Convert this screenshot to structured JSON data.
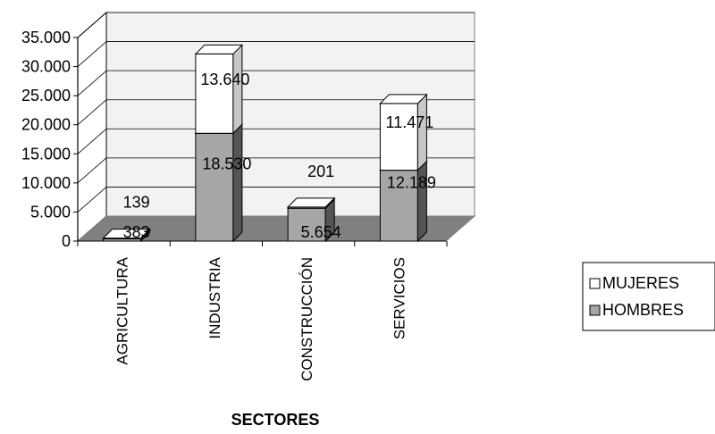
{
  "chart_data": {
    "type": "bar",
    "stacked": true,
    "three_d": true,
    "xlabel": "SECTORES",
    "ylabel": "",
    "ylim": [
      0,
      35000
    ],
    "y_ticks": [
      "0",
      "5.000",
      "10.000",
      "15.000",
      "20.000",
      "25.000",
      "30.000",
      "35.000"
    ],
    "categories": [
      "AGRICULTURA",
      "INDUSTRIA",
      "CONSTRUCCIÓN",
      "SERVICIOS"
    ],
    "series": [
      {
        "name": "HOMBRES",
        "values": [
          383,
          18530,
          5654,
          12189
        ],
        "labels": [
          "383",
          "18.530",
          "5.654",
          "12.189"
        ],
        "color": "#a6a6a6"
      },
      {
        "name": "MUJERES",
        "values": [
          139,
          13640,
          201,
          11471
        ],
        "labels": [
          "139",
          "13.640",
          "201",
          "11.471"
        ],
        "color": "#ffffff"
      }
    ],
    "grid": true,
    "legend_position": "right"
  }
}
